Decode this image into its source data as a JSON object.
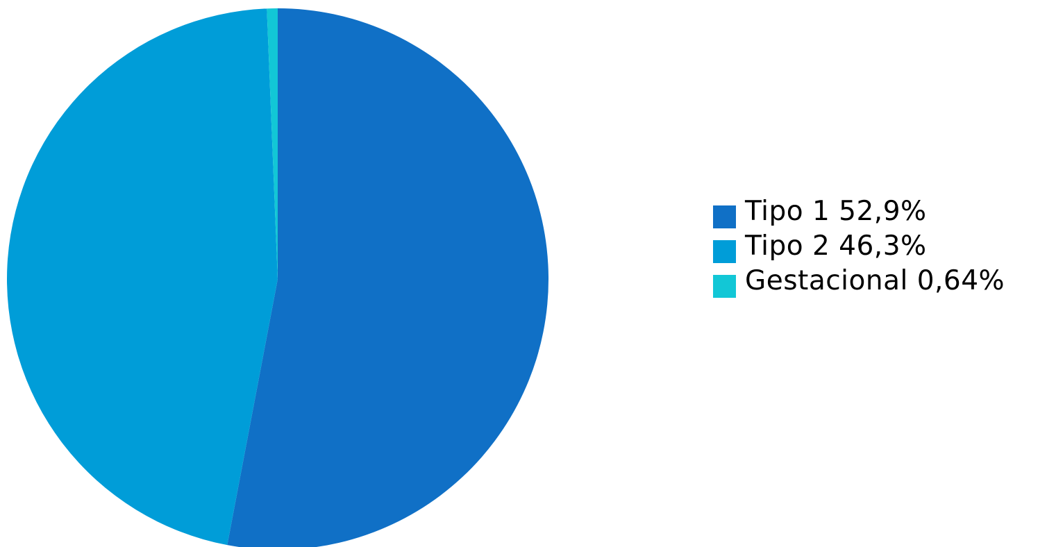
{
  "chart_data": {
    "type": "pie",
    "title": "",
    "legend_position": "right",
    "start_angle": "top",
    "direction": "clockwise",
    "slices": [
      {
        "label": "Tipo 1 52,9%",
        "value": 52.9,
        "color": "#1070c6"
      },
      {
        "label": "Tipo 2 46,3%",
        "value": 46.3,
        "color": "#009dd8"
      },
      {
        "label": "Gestacional 0,64%",
        "value": 0.64,
        "color": "#12c7d6"
      }
    ]
  }
}
